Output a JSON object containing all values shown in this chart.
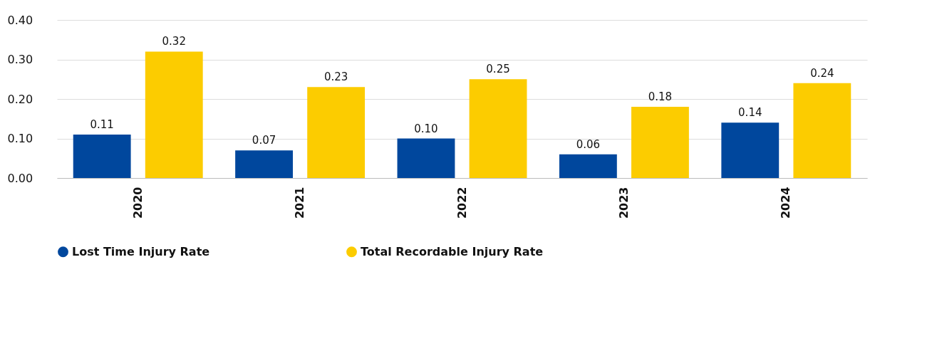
{
  "chart_data": {
    "type": "bar",
    "categories": [
      "2020",
      "2021",
      "2022",
      "2023",
      "2024"
    ],
    "series": [
      {
        "name": "Lost Time Injury Rate",
        "color": "#00479d",
        "values": [
          0.11,
          0.07,
          0.1,
          0.06,
          0.14
        ],
        "value_labels": [
          "0.11",
          "0.07",
          "0.10",
          "0.06",
          "0.14"
        ]
      },
      {
        "name": "Total Recordable Injury Rate",
        "color": "#fccc00",
        "values": [
          0.32,
          0.23,
          0.25,
          0.18,
          0.24
        ],
        "value_labels": [
          "0.32",
          "0.23",
          "0.25",
          "0.18",
          "0.24"
        ]
      }
    ],
    "ylim": [
      0,
      0.4
    ],
    "yticks": [
      {
        "value": 0,
        "label": "0.00"
      },
      {
        "value": 0.1,
        "label": "0.10"
      },
      {
        "value": 0.2,
        "label": "0.20"
      },
      {
        "value": 0.3,
        "label": "0.30"
      },
      {
        "value": 0.4,
        "label": "0.40"
      }
    ],
    "grid": "y",
    "legend": "bottom left"
  }
}
